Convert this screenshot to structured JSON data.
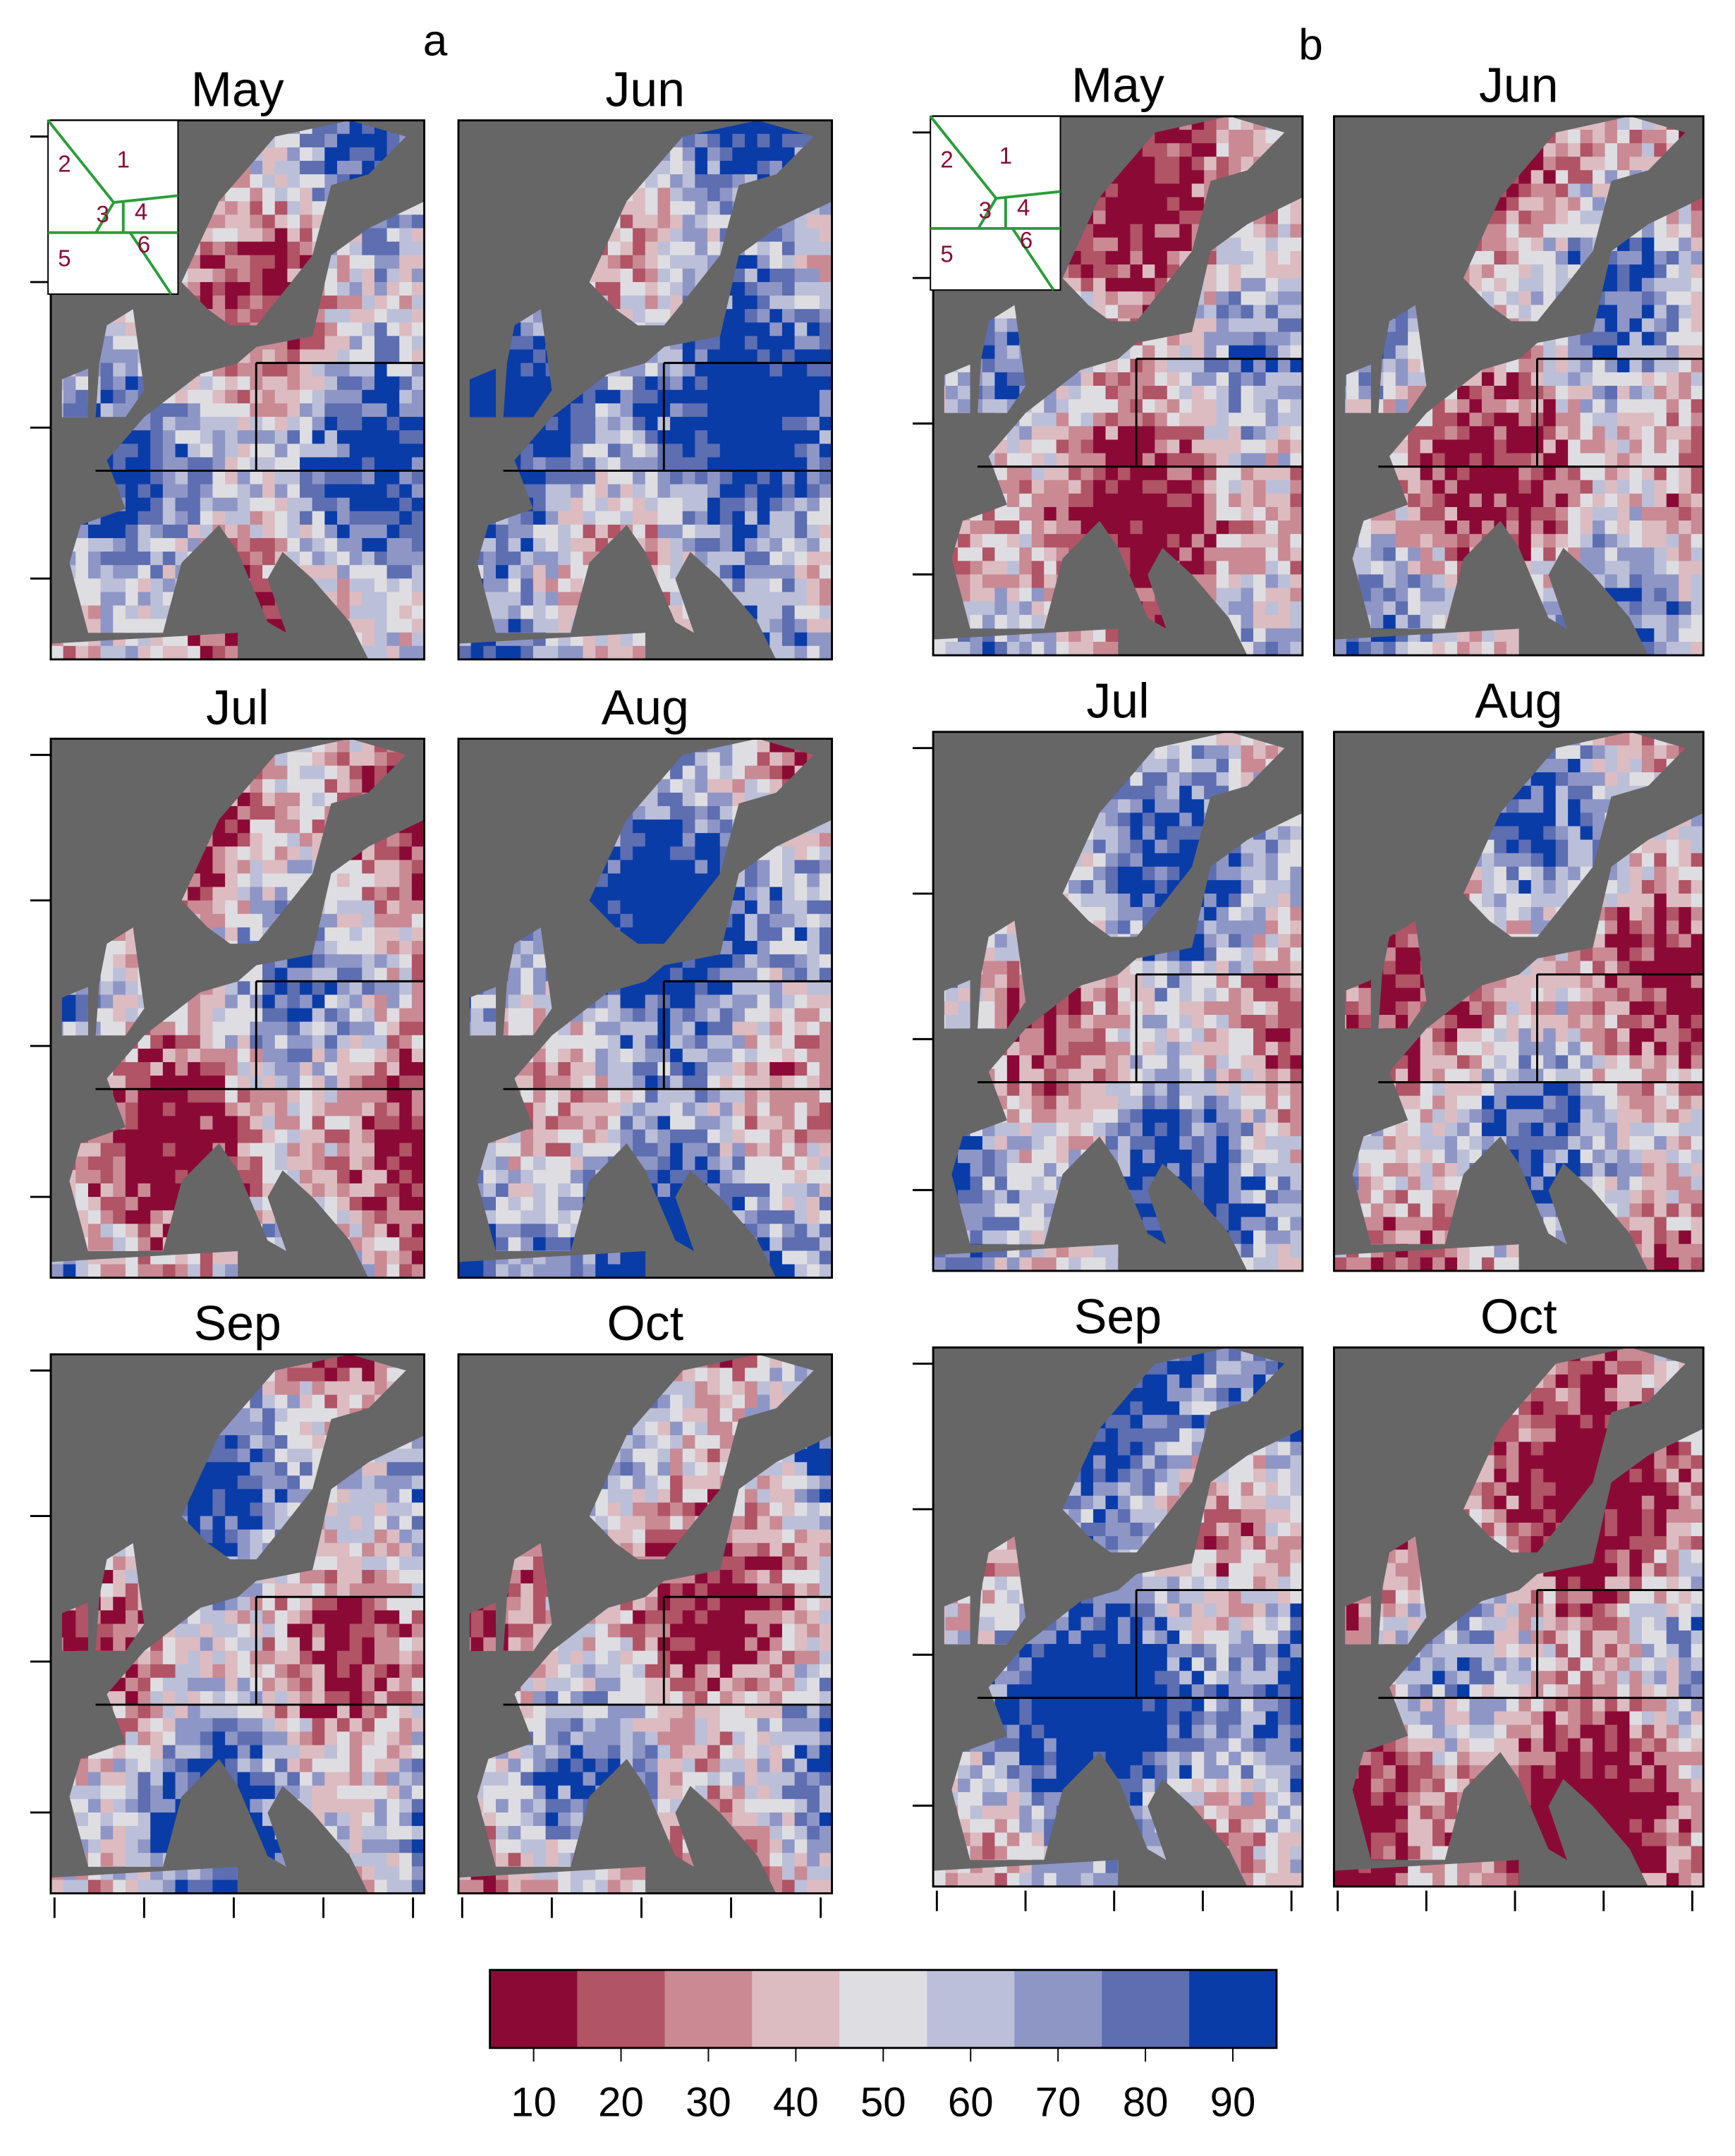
{
  "panel_groups": [
    {
      "label": "a",
      "months": [
        "May",
        "Jun",
        "Jul",
        "Aug",
        "Sep",
        "Oct"
      ]
    },
    {
      "label": "b",
      "months": [
        "May",
        "Jun",
        "Jul",
        "Aug",
        "Sep",
        "Oct"
      ]
    }
  ],
  "inset_labels": [
    "1",
    "2",
    "3",
    "4",
    "5",
    "6"
  ],
  "colorbar": {
    "lim": [
      5,
      95
    ],
    "ticks": [
      10,
      20,
      30,
      40,
      50,
      60,
      70,
      80,
      90
    ],
    "colors": [
      "#8b0a35",
      "#b05466",
      "#c98a94",
      "#dcbcc1",
      "#dedee2",
      "#bcbfd8",
      "#8e96c6",
      "#5d6eb1",
      "#0a3ca8"
    ]
  }
}
